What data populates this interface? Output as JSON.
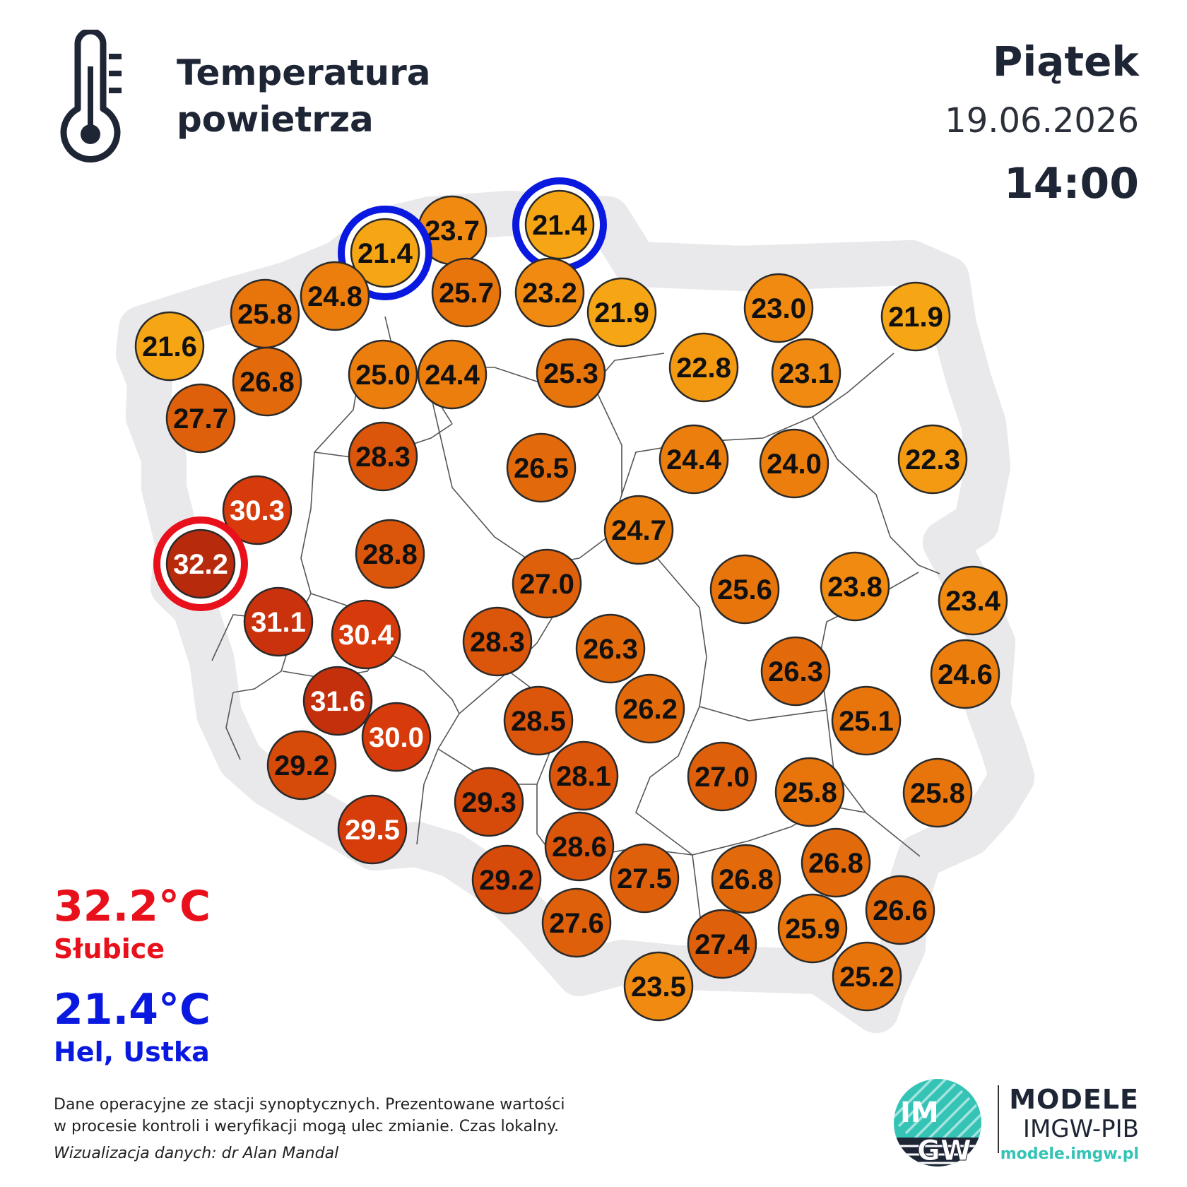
{
  "header": {
    "title_line1": "Temperatura",
    "title_line2": "powietrza",
    "day": "Piątek",
    "date": "19.06.2026",
    "time": "14:00"
  },
  "stations": [
    {
      "value": "23.7",
      "fill": "#f08a10",
      "text": "#111111"
    },
    {
      "value": "21.4",
      "fill": "#f6a515",
      "text": "#111111",
      "highlight": "min"
    },
    {
      "value": "21.4",
      "fill": "#f6a515",
      "text": "#111111",
      "highlight": "min"
    },
    {
      "value": "25.8",
      "fill": "#e8740c",
      "text": "#111111"
    },
    {
      "value": "24.8",
      "fill": "#ec7e0e",
      "text": "#111111"
    },
    {
      "value": "25.7",
      "fill": "#e8740c",
      "text": "#111111"
    },
    {
      "value": "23.2",
      "fill": "#f08a10",
      "text": "#111111"
    },
    {
      "value": "21.9",
      "fill": "#f6a515",
      "text": "#111111"
    },
    {
      "value": "23.0",
      "fill": "#f08a10",
      "text": "#111111"
    },
    {
      "value": "21.9",
      "fill": "#f6a515",
      "text": "#111111"
    },
    {
      "value": "21.6",
      "fill": "#f6a515",
      "text": "#111111"
    },
    {
      "value": "26.8",
      "fill": "#e36a0b",
      "text": "#111111"
    },
    {
      "value": "25.0",
      "fill": "#ec7e0e",
      "text": "#111111"
    },
    {
      "value": "24.4",
      "fill": "#ec7e0e",
      "text": "#111111"
    },
    {
      "value": "25.3",
      "fill": "#e8740c",
      "text": "#111111"
    },
    {
      "value": "22.8",
      "fill": "#f39a12",
      "text": "#111111"
    },
    {
      "value": "23.1",
      "fill": "#f08a10",
      "text": "#111111"
    },
    {
      "value": "27.7",
      "fill": "#df600a",
      "text": "#111111"
    },
    {
      "value": "28.3",
      "fill": "#db560a",
      "text": "#111111"
    },
    {
      "value": "26.5",
      "fill": "#e36a0b",
      "text": "#111111"
    },
    {
      "value": "24.4",
      "fill": "#ec7e0e",
      "text": "#111111"
    },
    {
      "value": "24.0",
      "fill": "#ec7e0e",
      "text": "#111111"
    },
    {
      "value": "22.3",
      "fill": "#f39a12",
      "text": "#111111"
    },
    {
      "value": "30.3",
      "fill": "#d83b0b",
      "text": "#ffffff"
    },
    {
      "value": "32.2",
      "fill": "#b82a0c",
      "text": "#ffffff",
      "highlight": "max"
    },
    {
      "value": "28.8",
      "fill": "#db560a",
      "text": "#111111"
    },
    {
      "value": "24.7",
      "fill": "#ec7e0e",
      "text": "#111111"
    },
    {
      "value": "27.0",
      "fill": "#df600a",
      "text": "#111111"
    },
    {
      "value": "25.6",
      "fill": "#e8740c",
      "text": "#111111"
    },
    {
      "value": "23.8",
      "fill": "#f08a10",
      "text": "#111111"
    },
    {
      "value": "23.4",
      "fill": "#f08a10",
      "text": "#111111"
    },
    {
      "value": "31.1",
      "fill": "#c9320c",
      "text": "#ffffff"
    },
    {
      "value": "30.4",
      "fill": "#d83b0b",
      "text": "#ffffff"
    },
    {
      "value": "28.3",
      "fill": "#db560a",
      "text": "#111111"
    },
    {
      "value": "26.3",
      "fill": "#e36a0b",
      "text": "#111111"
    },
    {
      "value": "26.3",
      "fill": "#e36a0b",
      "text": "#111111"
    },
    {
      "value": "24.6",
      "fill": "#ec7e0e",
      "text": "#111111"
    },
    {
      "value": "31.6",
      "fill": "#c42f0c",
      "text": "#ffffff"
    },
    {
      "value": "30.0",
      "fill": "#d83b0b",
      "text": "#ffffff"
    },
    {
      "value": "28.5",
      "fill": "#db560a",
      "text": "#111111"
    },
    {
      "value": "26.2",
      "fill": "#e36a0b",
      "text": "#111111"
    },
    {
      "value": "25.1",
      "fill": "#e8740c",
      "text": "#111111"
    },
    {
      "value": "29.2",
      "fill": "#d64a0a",
      "text": "#111111"
    },
    {
      "value": "28.1",
      "fill": "#db560a",
      "text": "#111111"
    },
    {
      "value": "27.0",
      "fill": "#df600a",
      "text": "#111111"
    },
    {
      "value": "25.8",
      "fill": "#e8740c",
      "text": "#111111"
    },
    {
      "value": "25.8",
      "fill": "#e8740c",
      "text": "#111111"
    },
    {
      "value": "29.3",
      "fill": "#d64a0a",
      "text": "#111111"
    },
    {
      "value": "29.5",
      "fill": "#d63d0b",
      "text": "#ffffff"
    },
    {
      "value": "28.6",
      "fill": "#db560a",
      "text": "#111111"
    },
    {
      "value": "27.5",
      "fill": "#df600a",
      "text": "#111111"
    },
    {
      "value": "26.8",
      "fill": "#e36a0b",
      "text": "#111111"
    },
    {
      "value": "26.8",
      "fill": "#e36a0b",
      "text": "#111111"
    },
    {
      "value": "29.2",
      "fill": "#d64a0a",
      "text": "#111111"
    },
    {
      "value": "26.6",
      "fill": "#e36a0b",
      "text": "#111111"
    },
    {
      "value": "27.6",
      "fill": "#df600a",
      "text": "#111111"
    },
    {
      "value": "27.4",
      "fill": "#df600a",
      "text": "#111111"
    },
    {
      "value": "25.9",
      "fill": "#e8740c",
      "text": "#111111"
    },
    {
      "value": "25.2",
      "fill": "#e8740c",
      "text": "#111111"
    },
    {
      "value": "23.5",
      "fill": "#f08a10",
      "text": "#111111"
    }
  ],
  "summary": {
    "max_value": "32.2°C",
    "max_station": "Słubice",
    "min_value": "21.4°C",
    "min_station": "Hel, Ustka",
    "max_color": "#e8101a",
    "min_color": "#0a19e0"
  },
  "footer": {
    "note_line1": "Dane operacyjne ze stacji synoptycznych. Prezentowane wartości",
    "note_line2": "w procesie kontroli i weryfikacji mogą ulec zmianie. Czas lokalny.",
    "credit": "Wizualizacja danych: dr Alan Mandal",
    "logo_letters_1": "IM",
    "logo_letters_2": "GW",
    "brand_line1": "MODELE",
    "brand_line2": "IMGW-PIB",
    "brand_url": "modele.imgw.pl"
  }
}
